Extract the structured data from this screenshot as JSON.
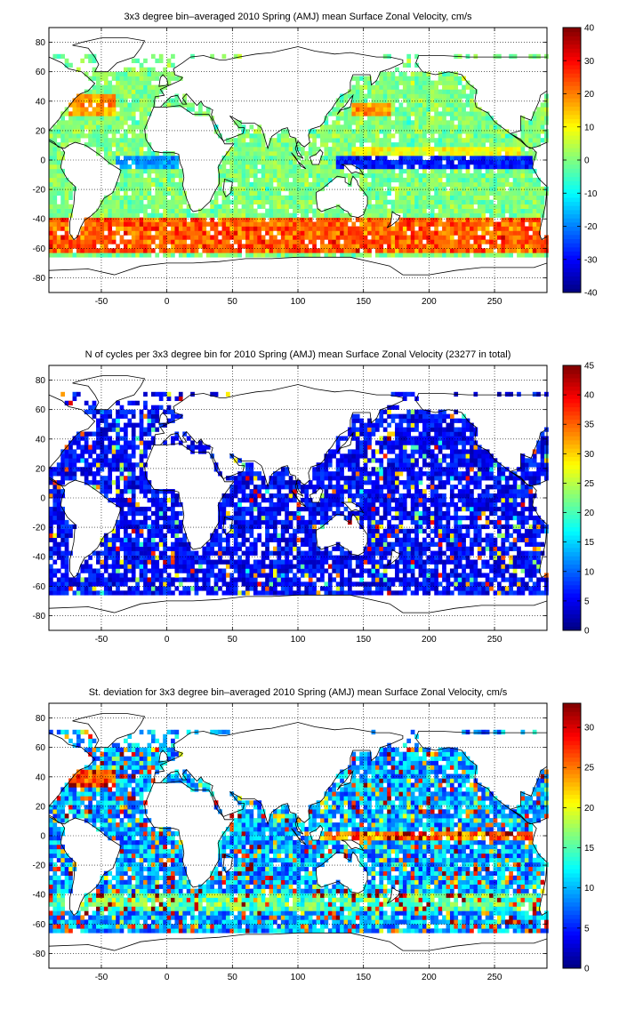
{
  "chart_data": [
    {
      "type": "heatmap",
      "title": "3x3 degree bin–averaged 2010 Spring (AMJ) mean Surface Zonal Velocity, cm/s",
      "xlabel": "",
      "ylabel": "",
      "xlim": [
        -90,
        290
      ],
      "ylim": [
        -90,
        90
      ],
      "x_ticks": [
        -50,
        0,
        50,
        100,
        150,
        200,
        250
      ],
      "y_ticks": [
        80,
        60,
        40,
        20,
        0,
        -20,
        -40,
        -60,
        -80
      ],
      "grid": true,
      "colormap": "jet",
      "clim": [
        -40,
        40
      ],
      "colorbar_ticks": [
        40,
        30,
        20,
        10,
        0,
        -10,
        -20,
        -30,
        -40
      ],
      "bin_size_deg": 3,
      "features": [
        {
          "region": "Southern Ocean (ACC)",
          "lat": [
            -62,
            -38
          ],
          "value": 25
        },
        {
          "region": "Equatorial Pacific",
          "lat": [
            -6,
            4
          ],
          "value": -30
        },
        {
          "region": "Equatorial Atlantic",
          "lat": [
            -6,
            2
          ],
          "value": -20
        },
        {
          "region": "Gulf Stream",
          "lat": [
            32,
            42
          ],
          "value": 25
        },
        {
          "region": "Kuroshio",
          "lat": [
            32,
            40
          ],
          "value": 25
        }
      ]
    },
    {
      "type": "heatmap",
      "title": "N of cycles per 3x3 degree bin for 2010 Spring (AMJ) mean Surface Zonal Velocity (23277 in total)",
      "xlabel": "",
      "ylabel": "",
      "xlim": [
        -90,
        290
      ],
      "ylim": [
        -90,
        90
      ],
      "x_ticks": [
        -50,
        0,
        50,
        100,
        150,
        200,
        250
      ],
      "y_ticks": [
        80,
        60,
        40,
        20,
        0,
        -20,
        -40,
        -60,
        -80
      ],
      "grid": true,
      "colormap": "jet",
      "clim": [
        0,
        45
      ],
      "colorbar_ticks": [
        45,
        40,
        35,
        30,
        25,
        20,
        15,
        10,
        5,
        0
      ],
      "bin_size_deg": 3,
      "total_cycles": 23277,
      "typical_value": 5
    },
    {
      "type": "heatmap",
      "title": "St. deviation for 3x3 degree bin–averaged 2010 Spring (AMJ) mean Surface Zonal Velocity, cm/s",
      "xlabel": "",
      "ylabel": "",
      "xlim": [
        -90,
        290
      ],
      "ylim": [
        -90,
        90
      ],
      "x_ticks": [
        -50,
        0,
        50,
        100,
        150,
        200,
        250
      ],
      "y_ticks": [
        80,
        60,
        40,
        20,
        0,
        -20,
        -40,
        -60,
        -80
      ],
      "grid": true,
      "colormap": "jet",
      "clim": [
        0,
        33
      ],
      "colorbar_ticks": [
        30,
        25,
        20,
        15,
        10,
        5,
        0
      ],
      "bin_size_deg": 3,
      "features": [
        {
          "region": "Equatorial band",
          "lat": [
            -4,
            4
          ],
          "value": 28
        },
        {
          "region": "Gulf Stream",
          "lat": [
            32,
            44
          ],
          "value": 30
        },
        {
          "region": "Southern Ocean",
          "lat": [
            -50,
            -38
          ],
          "value": 22
        }
      ]
    }
  ]
}
